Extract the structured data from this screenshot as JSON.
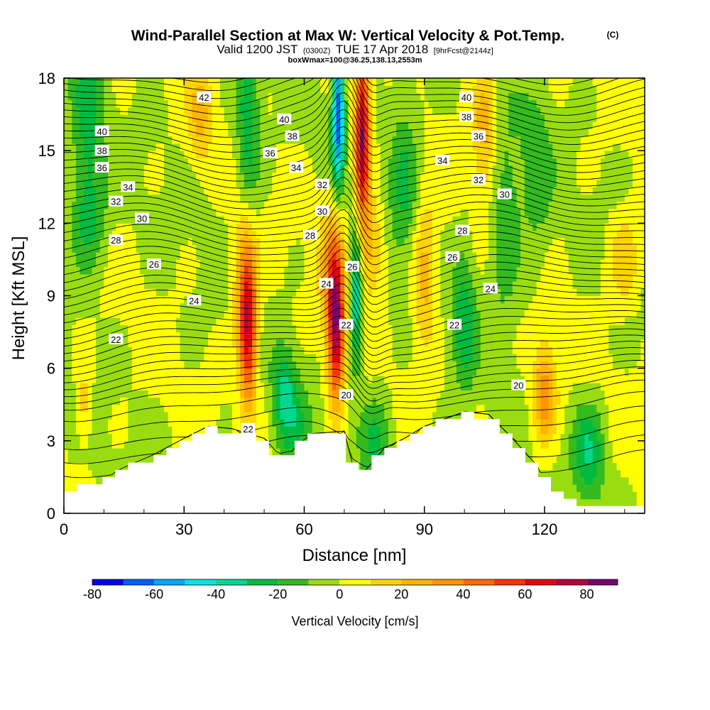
{
  "header": {
    "title": "Wind-Parallel Section at Max W: Vertical Velocity & Pot.Temp.",
    "title_suffix": "(C)",
    "valid_prefix": "Valid 1200 JST",
    "valid_utc": "(0300Z)",
    "valid_date": "TUE 17 Apr 2018",
    "forecast": "[9hrFcst@2144z]",
    "box_info": "boxWmax=100@36.25,138.13,2553m"
  },
  "chart_data": {
    "type": "heatmap",
    "xlabel": "Distance [nm]",
    "ylabel": "Height [Kft MSL]",
    "xlim": [
      0,
      145
    ],
    "ylim": [
      0,
      18
    ],
    "x_ticks": [
      0,
      30,
      60,
      90,
      120
    ],
    "y_ticks": [
      0,
      3,
      6,
      9,
      12,
      15,
      18
    ],
    "colorbar": {
      "label": "Vertical Velocity [cm/s]",
      "ticks": [
        -80,
        -60,
        -40,
        -20,
        0,
        20,
        40,
        60,
        80
      ],
      "bins": [
        {
          "lo": -80,
          "hi": -70,
          "color": "#0000ee"
        },
        {
          "lo": -70,
          "hi": -60,
          "color": "#0060ff"
        },
        {
          "lo": -60,
          "hi": -50,
          "color": "#00a8ff"
        },
        {
          "lo": -50,
          "hi": -40,
          "color": "#00e6e6"
        },
        {
          "lo": -40,
          "hi": -30,
          "color": "#00d890"
        },
        {
          "lo": -30,
          "hi": -20,
          "color": "#00bb40"
        },
        {
          "lo": -20,
          "hi": -10,
          "color": "#33bb20"
        },
        {
          "lo": -10,
          "hi": 0,
          "color": "#99dd11"
        },
        {
          "lo": 0,
          "hi": 10,
          "color": "#ffff00"
        },
        {
          "lo": 10,
          "hi": 20,
          "color": "#ffd400"
        },
        {
          "lo": 20,
          "hi": 30,
          "color": "#ffb400"
        },
        {
          "lo": 30,
          "hi": 40,
          "color": "#ff9600"
        },
        {
          "lo": 40,
          "hi": 50,
          "color": "#ff6a00"
        },
        {
          "lo": 50,
          "hi": 60,
          "color": "#ff3200"
        },
        {
          "lo": 60,
          "hi": 70,
          "color": "#e60010"
        },
        {
          "lo": 70,
          "hi": 80,
          "color": "#b40040"
        },
        {
          "lo": 80,
          "hi": 90,
          "color": "#7a0070"
        }
      ]
    },
    "vertical_velocity_features": [
      {
        "x": 6,
        "z": 16,
        "sx": 4,
        "sz": 5,
        "w": -22
      },
      {
        "x": 6,
        "z": 12,
        "sx": 5,
        "sz": 2,
        "w": -15
      },
      {
        "x": 5,
        "z": 4.5,
        "sx": 2,
        "sz": 1.5,
        "w": 18
      },
      {
        "x": 34,
        "z": 16.5,
        "sx": 3,
        "sz": 2,
        "w": 22
      },
      {
        "x": 46,
        "z": 16,
        "sx": 3,
        "sz": 4,
        "w": -28
      },
      {
        "x": 46,
        "z": 7.5,
        "sx": 2.2,
        "sz": 3,
        "w": 66
      },
      {
        "x": 45,
        "z": 10,
        "sx": 3,
        "sz": 3,
        "w": 25
      },
      {
        "x": 55,
        "z": 5,
        "sx": 3,
        "sz": 2,
        "w": -28
      },
      {
        "x": 58,
        "z": 3.5,
        "sx": 4,
        "sz": 2,
        "w": -15
      },
      {
        "x": 68,
        "z": 7.5,
        "sx": 2,
        "sz": 3,
        "w": 72
      },
      {
        "x": 67,
        "z": 10,
        "sx": 3,
        "sz": 3,
        "w": 30
      },
      {
        "x": 68.5,
        "z": 16.5,
        "sx": 1.5,
        "sz": 3,
        "w": -68
      },
      {
        "x": 73,
        "z": 9,
        "sx": 1.5,
        "sz": 3,
        "w": -45
      },
      {
        "x": 74.5,
        "z": 15.5,
        "sx": 1.8,
        "sz": 3.5,
        "w": 82
      },
      {
        "x": 77,
        "z": 11,
        "sx": 3,
        "sz": 2,
        "w": 25
      },
      {
        "x": 78,
        "z": 3,
        "sx": 4,
        "sz": 2,
        "w": -20
      },
      {
        "x": 85,
        "z": 14,
        "sx": 4,
        "sz": 4,
        "w": -20
      },
      {
        "x": 90,
        "z": 10,
        "sx": 3,
        "sz": 3,
        "w": 28
      },
      {
        "x": 100,
        "z": 8,
        "sx": 3,
        "sz": 3,
        "w": -25
      },
      {
        "x": 105,
        "z": 16,
        "sx": 3,
        "sz": 3,
        "w": 25
      },
      {
        "x": 110,
        "z": 12,
        "sx": 4,
        "sz": 4,
        "w": -20
      },
      {
        "x": 120,
        "z": 5,
        "sx": 3,
        "sz": 2,
        "w": 38
      },
      {
        "x": 118,
        "z": 14,
        "sx": 4,
        "sz": 4,
        "w": -15
      },
      {
        "x": 131,
        "z": 2.5,
        "sx": 4,
        "sz": 2,
        "w": -30
      },
      {
        "x": 140,
        "z": 10.5,
        "sx": 4,
        "sz": 2,
        "w": 18
      }
    ],
    "terrain": [
      {
        "x": 0,
        "z": 0.7
      },
      {
        "x": 3,
        "z": 1.0
      },
      {
        "x": 9,
        "z": 1.3
      },
      {
        "x": 15,
        "z": 1.8
      },
      {
        "x": 22,
        "z": 2.3
      },
      {
        "x": 30,
        "z": 3.0
      },
      {
        "x": 36,
        "z": 3.5
      },
      {
        "x": 42,
        "z": 3.4
      },
      {
        "x": 50,
        "z": 3.0
      },
      {
        "x": 55,
        "z": 2.1
      },
      {
        "x": 58,
        "z": 2.7
      },
      {
        "x": 62,
        "z": 3.2
      },
      {
        "x": 70,
        "z": 3.3
      },
      {
        "x": 73,
        "z": 1.3
      },
      {
        "x": 76,
        "z": 1.8
      },
      {
        "x": 80,
        "z": 2.6
      },
      {
        "x": 85,
        "z": 3.0
      },
      {
        "x": 90,
        "z": 3.5
      },
      {
        "x": 95,
        "z": 3.8
      },
      {
        "x": 100,
        "z": 4.1
      },
      {
        "x": 106,
        "z": 4.0
      },
      {
        "x": 112,
        "z": 3.0
      },
      {
        "x": 118,
        "z": 1.9
      },
      {
        "x": 123,
        "z": 0.8
      },
      {
        "x": 128,
        "z": 0.4
      },
      {
        "x": 145,
        "z": 0.4
      }
    ],
    "theta_labels": [
      {
        "text": "42",
        "x": 35,
        "z": 17.2
      },
      {
        "text": "40",
        "x": 9.5,
        "z": 15.8
      },
      {
        "text": "40",
        "x": 55,
        "z": 16.3
      },
      {
        "text": "40",
        "x": 100.5,
        "z": 17.2
      },
      {
        "text": "38",
        "x": 9.5,
        "z": 15.0
      },
      {
        "text": "38",
        "x": 57,
        "z": 15.6
      },
      {
        "text": "38",
        "x": 100.5,
        "z": 16.4
      },
      {
        "text": "36",
        "x": 9.5,
        "z": 14.3
      },
      {
        "text": "36",
        "x": 51.5,
        "z": 14.9
      },
      {
        "text": "36",
        "x": 103.5,
        "z": 15.6
      },
      {
        "text": "34",
        "x": 16,
        "z": 13.5
      },
      {
        "text": "34",
        "x": 58,
        "z": 14.3
      },
      {
        "text": "34",
        "x": 94.5,
        "z": 14.6
      },
      {
        "text": "32",
        "x": 13,
        "z": 12.9
      },
      {
        "text": "32",
        "x": 64.5,
        "z": 13.6
      },
      {
        "text": "32",
        "x": 103.5,
        "z": 13.8
      },
      {
        "text": "30",
        "x": 19.5,
        "z": 12.2
      },
      {
        "text": "30",
        "x": 64.5,
        "z": 12.5
      },
      {
        "text": "30",
        "x": 110,
        "z": 13.2
      },
      {
        "text": "28",
        "x": 13,
        "z": 11.3
      },
      {
        "text": "28",
        "x": 61.5,
        "z": 11.5
      },
      {
        "text": "28",
        "x": 99.5,
        "z": 11.7
      },
      {
        "text": "26",
        "x": 22.5,
        "z": 10.3
      },
      {
        "text": "26",
        "x": 72,
        "z": 10.2
      },
      {
        "text": "26",
        "x": 97,
        "z": 10.6
      },
      {
        "text": "24",
        "x": 32.5,
        "z": 8.8
      },
      {
        "text": "24",
        "x": 65.5,
        "z": 9.5
      },
      {
        "text": "24",
        "x": 106.5,
        "z": 9.3
      },
      {
        "text": "22",
        "x": 13,
        "z": 7.2
      },
      {
        "text": "22",
        "x": 70.5,
        "z": 7.8
      },
      {
        "text": "22",
        "x": 97.5,
        "z": 7.8
      },
      {
        "text": "22",
        "x": 46,
        "z": 3.5
      },
      {
        "text": "20",
        "x": 70.5,
        "z": 4.9
      },
      {
        "text": "20",
        "x": 113.5,
        "z": 5.3
      }
    ]
  }
}
